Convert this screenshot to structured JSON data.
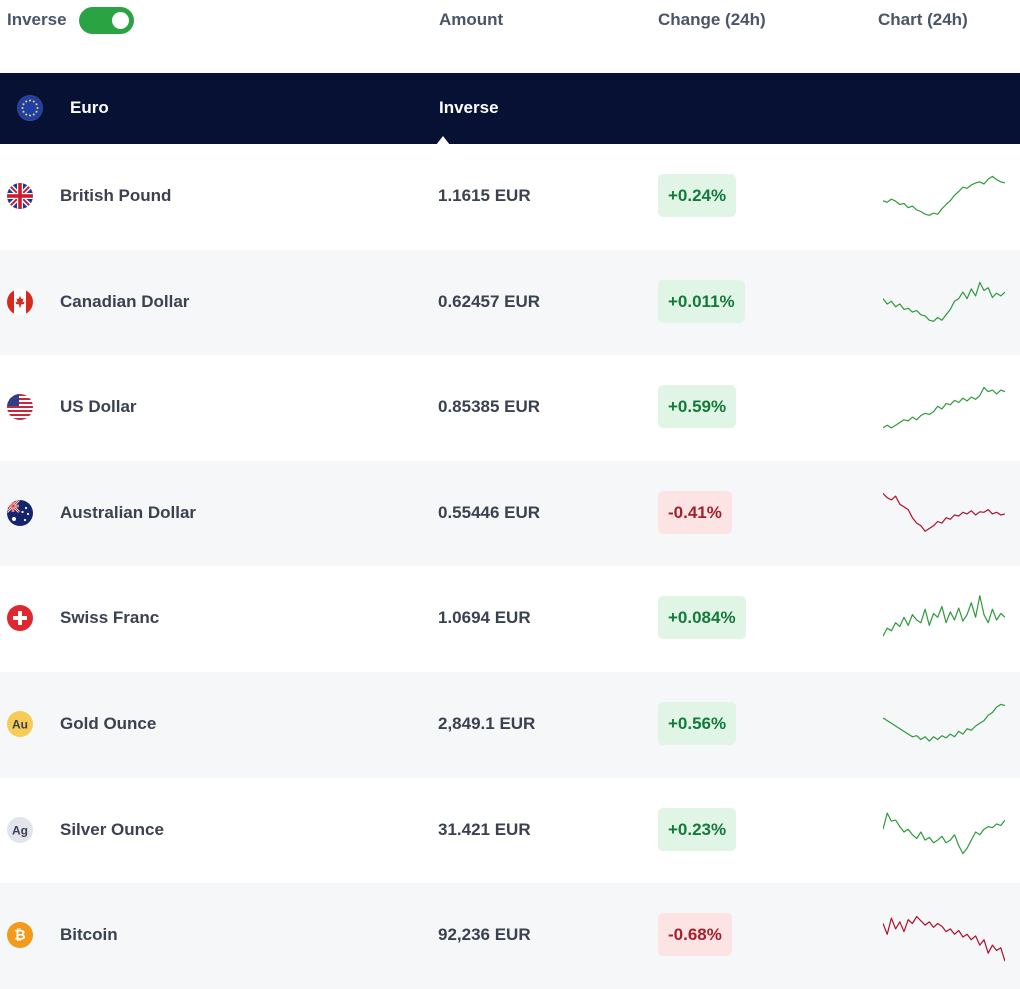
{
  "header": {
    "toggle_label": "Inverse",
    "toggle_on": true,
    "col_amount": "Amount",
    "col_change": "Change (24h)",
    "col_chart": "Chart (24h)"
  },
  "base": {
    "name": "Euro",
    "mode_label": "Inverse",
    "flag_icon": "eu-flag-icon"
  },
  "colors": {
    "positive": "#2e9a3a",
    "negative": "#b2102b",
    "header_bg": "#061134",
    "toggle": "#2aa343"
  },
  "rows": [
    {
      "name": "British Pound",
      "amount": "1.1615 EUR",
      "change": "+0.24%",
      "trend": "up",
      "flag_icon": "gb-flag-icon",
      "chart": [
        0.45,
        0.42,
        0.48,
        0.44,
        0.38,
        0.4,
        0.32,
        0.35,
        0.28,
        0.25,
        0.2,
        0.18,
        0.22,
        0.2,
        0.3,
        0.38,
        0.45,
        0.55,
        0.62,
        0.7,
        0.68,
        0.74,
        0.78,
        0.8,
        0.76,
        0.85,
        0.9,
        0.84,
        0.8,
        0.78
      ]
    },
    {
      "name": "Canadian Dollar",
      "amount": "0.62457 EUR",
      "change": "+0.011%",
      "trend": "up",
      "flag_icon": "ca-flag-icon",
      "chart": [
        0.6,
        0.5,
        0.55,
        0.45,
        0.5,
        0.4,
        0.42,
        0.35,
        0.38,
        0.3,
        0.28,
        0.2,
        0.18,
        0.25,
        0.2,
        0.3,
        0.4,
        0.55,
        0.6,
        0.72,
        0.6,
        0.78,
        0.65,
        0.9,
        0.75,
        0.8,
        0.62,
        0.7,
        0.65,
        0.72
      ]
    },
    {
      "name": "US Dollar",
      "amount": "0.85385 EUR",
      "change": "+0.59%",
      "trend": "up",
      "flag_icon": "us-flag-icon",
      "chart": [
        0.15,
        0.2,
        0.15,
        0.2,
        0.25,
        0.3,
        0.28,
        0.35,
        0.3,
        0.38,
        0.42,
        0.4,
        0.45,
        0.55,
        0.5,
        0.6,
        0.58,
        0.66,
        0.62,
        0.7,
        0.65,
        0.72,
        0.68,
        0.75,
        0.9,
        0.82,
        0.85,
        0.78,
        0.85,
        0.82
      ]
    },
    {
      "name": "Australian Dollar",
      "amount": "0.55446 EUR",
      "change": "-0.41%",
      "trend": "down",
      "flag_icon": "au-flag-icon",
      "chart": [
        0.9,
        0.82,
        0.78,
        0.85,
        0.7,
        0.65,
        0.6,
        0.45,
        0.35,
        0.3,
        0.2,
        0.25,
        0.3,
        0.38,
        0.35,
        0.45,
        0.42,
        0.5,
        0.48,
        0.55,
        0.52,
        0.58,
        0.5,
        0.56,
        0.55,
        0.6,
        0.52,
        0.55,
        0.5,
        0.52
      ]
    },
    {
      "name": "Swiss Franc",
      "amount": "1.0694 EUR",
      "change": "+0.084%",
      "trend": "up",
      "flag_icon": "ch-flag-icon",
      "chart": [
        0.2,
        0.35,
        0.3,
        0.45,
        0.38,
        0.55,
        0.4,
        0.6,
        0.5,
        0.45,
        0.7,
        0.4,
        0.62,
        0.55,
        0.75,
        0.45,
        0.65,
        0.5,
        0.72,
        0.48,
        0.6,
        0.82,
        0.55,
        0.95,
        0.6,
        0.45,
        0.7,
        0.5,
        0.62,
        0.55
      ]
    },
    {
      "name": "Gold Ounce",
      "amount": "2,849.1 EUR",
      "change": "+0.56%",
      "trend": "up",
      "flag_icon": "gold-icon",
      "flag_text": "Au",
      "chart": [
        0.65,
        0.6,
        0.55,
        0.5,
        0.45,
        0.4,
        0.35,
        0.3,
        0.32,
        0.25,
        0.3,
        0.22,
        0.3,
        0.25,
        0.32,
        0.28,
        0.35,
        0.3,
        0.4,
        0.35,
        0.45,
        0.42,
        0.5,
        0.55,
        0.6,
        0.7,
        0.75,
        0.85,
        0.9,
        0.88
      ]
    },
    {
      "name": "Silver Ounce",
      "amount": "31.421 EUR",
      "change": "+0.23%",
      "trend": "up",
      "flag_icon": "silver-icon",
      "flag_text": "Ag",
      "chart": [
        0.55,
        0.85,
        0.7,
        0.72,
        0.6,
        0.5,
        0.55,
        0.45,
        0.38,
        0.5,
        0.35,
        0.4,
        0.3,
        0.35,
        0.42,
        0.3,
        0.35,
        0.45,
        0.25,
        0.1,
        0.2,
        0.35,
        0.5,
        0.45,
        0.55,
        0.6,
        0.58,
        0.65,
        0.62,
        0.72
      ]
    },
    {
      "name": "Bitcoin",
      "amount": "92,236 EUR",
      "change": "-0.68%",
      "trend": "down",
      "flag_icon": "bitcoin-icon",
      "flag_text": "₿",
      "chart": [
        0.75,
        0.55,
        0.85,
        0.65,
        0.78,
        0.6,
        0.82,
        0.75,
        0.88,
        0.8,
        0.72,
        0.78,
        0.68,
        0.75,
        0.7,
        0.6,
        0.65,
        0.55,
        0.62,
        0.5,
        0.55,
        0.45,
        0.52,
        0.35,
        0.45,
        0.2,
        0.35,
        0.25,
        0.3,
        0.05
      ]
    }
  ]
}
